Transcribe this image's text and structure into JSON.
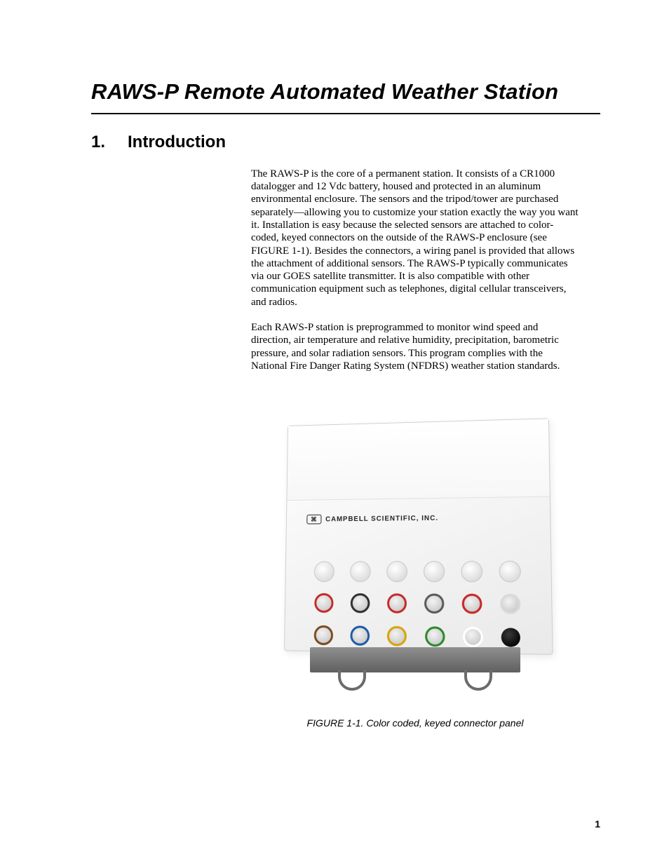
{
  "doc": {
    "title": "RAWS-P Remote Automated Weather Station",
    "section_number": "1.",
    "section_title": "Introduction",
    "para1": "The RAWS-P is the core of a permanent station.  It consists of a CR1000 datalogger and 12 Vdc battery, housed and protected in an aluminum environmental enclosure.  The sensors and the tripod/tower are purchased separately—allowing you to customize your station exactly the way you want it.  Installation is easy because the selected sensors are attached to color-coded, keyed connectors on the outside of the RAWS-P enclosure (see FIGURE 1-1).  Besides the connectors, a wiring panel is provided that allows the attachment of additional sensors.  The RAWS-P typically communicates via our GOES satellite transmitter.  It is also compatible with other communication equipment such as telephones, digital cellular transceivers, and radios.",
    "para2": "Each RAWS-P station is preprogrammed to monitor wind speed and direction, air temperature and relative humidity, precipitation, barometric pressure, and solar radiation sensors.  This program complies with the National Fire Danger Rating System (NFDRS) weather station standards.",
    "figure_logo_text": "CAMPBELL SCIENTIFIC, INC.",
    "figure_caption": "FIGURE 1-1.  Color coded, keyed connector panel",
    "page_number": "1"
  },
  "figure": {
    "connector_colors_top": [
      "#c8c8c8",
      "#c8c8c8",
      "#c8c8c8",
      "#c8c8c8",
      "#d9d9d9",
      "#d9d9d9"
    ],
    "connector_colors_mid": [
      "#c62828",
      "#2e2e2e",
      "#c62828",
      "#5a5a5a",
      "#c62828",
      "#d9d9d9"
    ],
    "connector_colors_bot": [
      "#7a4a1e",
      "#1e5aa8",
      "#d9a400",
      "#2c8a2c",
      "#ffffff",
      "#000000"
    ],
    "enclosure_bg": "#f3f3f3",
    "bracket_color": "#6f6f6f"
  }
}
